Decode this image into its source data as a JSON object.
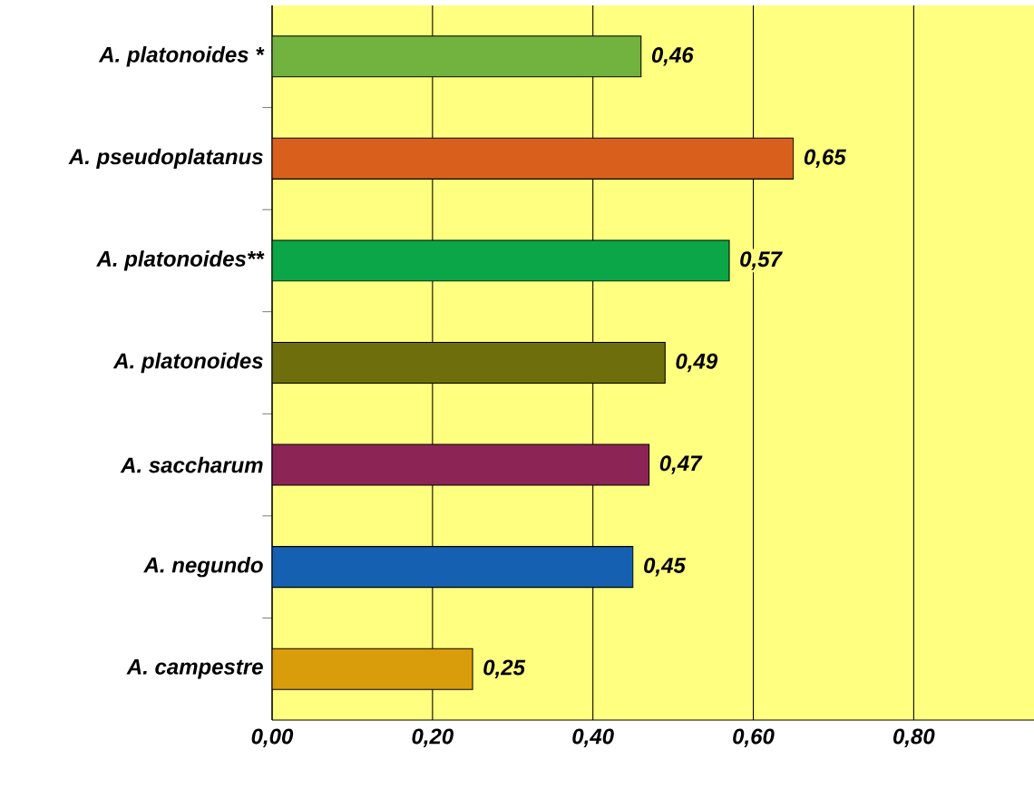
{
  "chart_data": {
    "type": "bar",
    "orientation": "horizontal",
    "categories": [
      "A. platonoides *",
      "A. pseudoplatanus",
      "A. platonoides**",
      "A. platonoides",
      "A. saccharum",
      "A. negundo",
      "A. campestre"
    ],
    "values": [
      0.46,
      0.65,
      0.57,
      0.49,
      0.47,
      0.45,
      0.25
    ],
    "colors": [
      "#72b23e",
      "#d9601c",
      "#0aa648",
      "#6e6e0c",
      "#8c2456",
      "#1560b0",
      "#d99c0a"
    ],
    "value_labels": [
      "0,46",
      "0,65",
      "0,57",
      "0,49",
      "0,47",
      "0,45",
      "0,25"
    ],
    "xlim": [
      0,
      0.95
    ],
    "xticks": [
      {
        "value": 0,
        "label": "0,00"
      },
      {
        "value": 0.2,
        "label": "0,20"
      },
      {
        "value": 0.4,
        "label": "0,40"
      },
      {
        "value": 0.6,
        "label": "0,60"
      },
      {
        "value": 0.8,
        "label": "0,80"
      }
    ],
    "grid": "x"
  }
}
